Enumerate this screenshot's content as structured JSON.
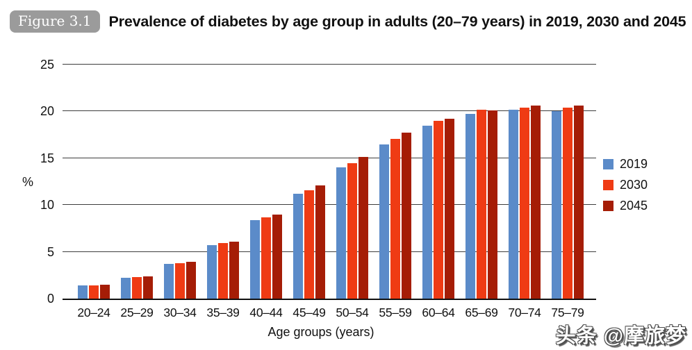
{
  "figure": {
    "badge": "Figure 3.1",
    "title": "Prevalence of diabetes by age group in adults (20–79 years) in 2019, 2030 and 2045"
  },
  "watermark": "头条 @摩旅梦",
  "chart_data": {
    "type": "bar",
    "title": "Prevalence of diabetes by age group in adults (20–79 years) in 2019, 2030 and 2045",
    "categories": [
      "20–24",
      "25–29",
      "30–34",
      "35–39",
      "40–44",
      "45–49",
      "50–54",
      "55–59",
      "60–64",
      "65–69",
      "70–74",
      "75–79"
    ],
    "series": [
      {
        "name": "2019",
        "color": "#5B8BC9",
        "values": [
          1.4,
          2.2,
          3.7,
          5.7,
          8.4,
          11.2,
          14.0,
          16.5,
          18.5,
          19.7,
          20.2,
          20.0
        ]
      },
      {
        "name": "2030",
        "color": "#EF3B14",
        "values": [
          1.4,
          2.3,
          3.8,
          5.9,
          8.7,
          11.6,
          14.5,
          17.1,
          19.0,
          20.2,
          20.4,
          20.4
        ]
      },
      {
        "name": "2045",
        "color": "#A51D06",
        "values": [
          1.5,
          2.4,
          3.9,
          6.1,
          9.0,
          12.1,
          15.1,
          17.7,
          19.2,
          20.1,
          20.6,
          20.6
        ]
      }
    ],
    "xlabel": "Age groups (years)",
    "ylabel": "%",
    "ylim": [
      0,
      25
    ],
    "yticks": [
      0,
      5,
      10,
      15,
      20,
      25
    ],
    "grid": true,
    "legend_position": "right"
  }
}
